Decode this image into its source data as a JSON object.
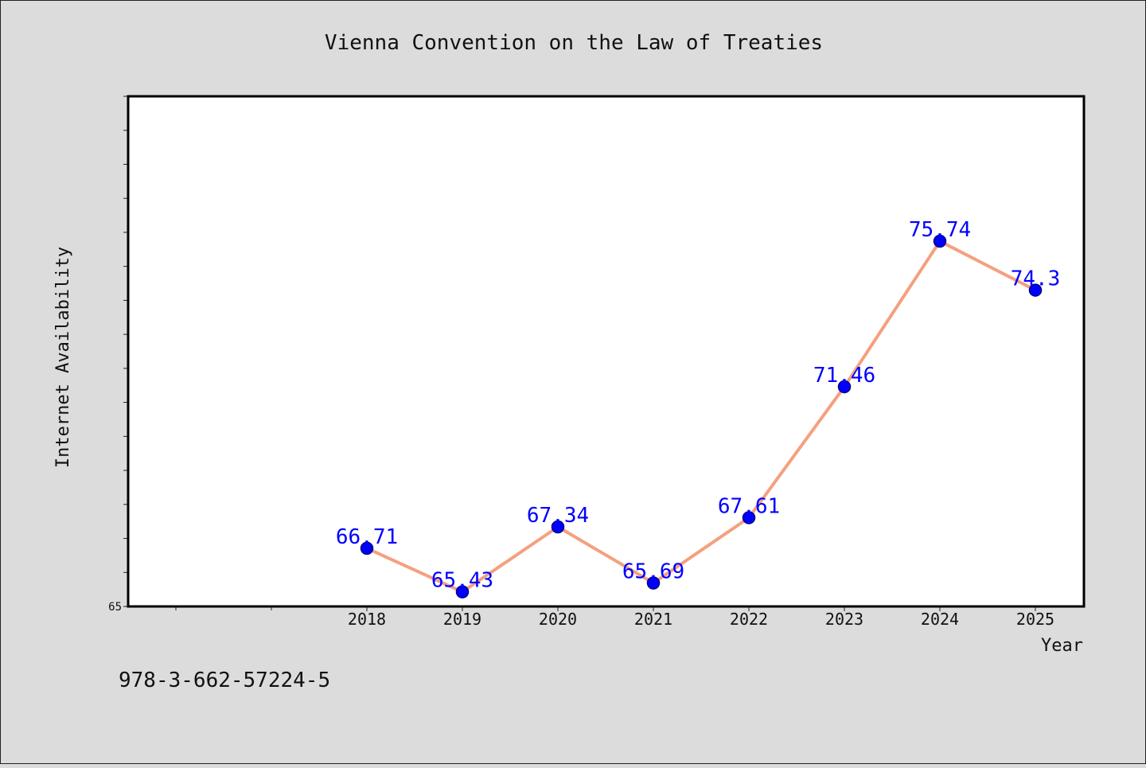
{
  "chart_data": {
    "type": "line",
    "title": "Vienna Convention on the Law of Treaties",
    "xlabel": "Year",
    "ylabel": "Internet Availability",
    "categories": [
      "2018",
      "2019",
      "2020",
      "2021",
      "2022",
      "2023",
      "2024",
      "2025"
    ],
    "series": [
      {
        "values": [
          66.71,
          65.43,
          67.34,
          65.69,
          67.61,
          71.46,
          75.74,
          74.3
        ],
        "labels": [
          "66.71",
          "65.43",
          "67.34",
          "65.69",
          "67.61",
          "71.46",
          "75.74",
          "74.3"
        ]
      }
    ],
    "ylim": [
      65,
      80
    ],
    "y_tick_labels": [
      "65"
    ],
    "grid": false,
    "colors": {
      "line": "#f4a07f",
      "marker": "#0000ff",
      "marker_edge": "#00008b",
      "data_label": "#0000ff",
      "background": "#dcdcdc",
      "plot_background": "#ffffff"
    }
  },
  "footer": {
    "isbn": "978-3-662-57224-5"
  }
}
